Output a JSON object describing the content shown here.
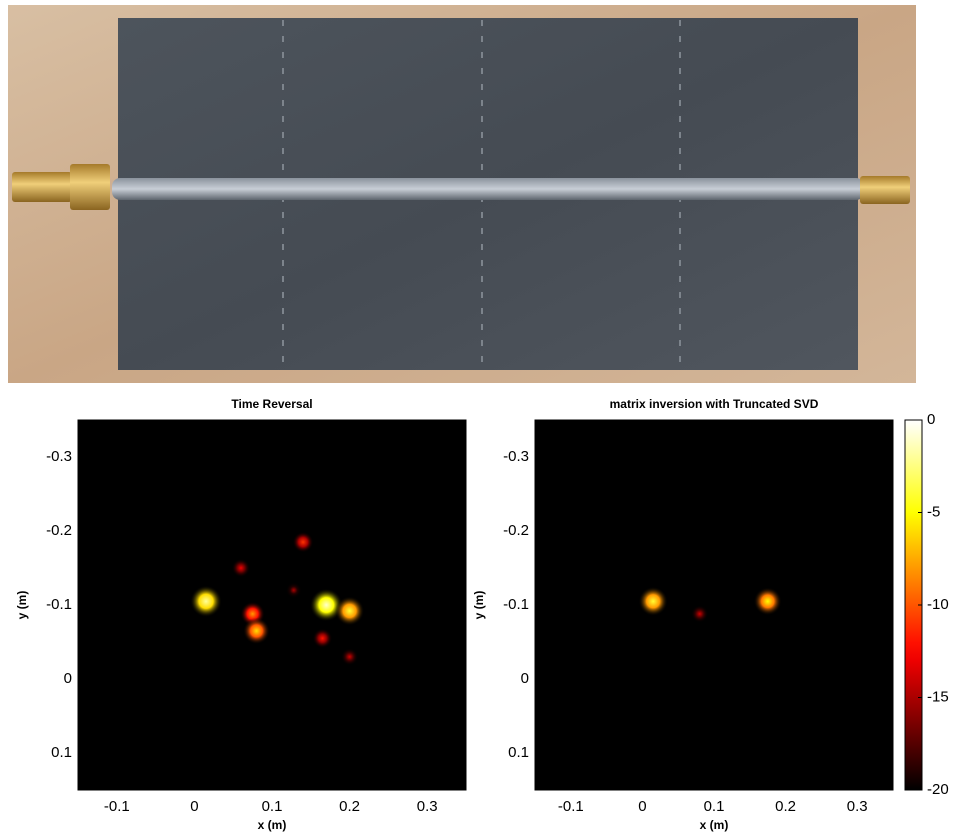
{
  "chart_data": [
    {
      "type": "heatmap",
      "title": "Time Reversal",
      "x_label": "x (m)",
      "y_label": "y (m)",
      "xlim": [
        -0.15,
        0.35
      ],
      "xticks": [
        -0.1,
        0,
        0.1,
        0.2,
        0.3
      ],
      "ylim": [
        -0.35,
        0.15
      ],
      "yticks": [
        -0.3,
        -0.2,
        -0.1,
        0,
        0.1
      ],
      "y_reversed": true,
      "spots": {
        "x": [
          0.015,
          0.075,
          0.08,
          0.06,
          0.14,
          0.17,
          0.2,
          0.2,
          0.165,
          0.128
        ],
        "y": [
          -0.105,
          -0.088,
          -0.065,
          -0.15,
          -0.185,
          -0.1,
          -0.092,
          -0.03,
          -0.055,
          -0.12
        ],
        "level": [
          -2,
          -8,
          -6,
          -13,
          -11,
          -1,
          -4,
          -14,
          -12,
          -15
        ]
      }
    },
    {
      "type": "heatmap",
      "title": "matrix inversion with Truncated SVD",
      "x_label": "x (m)",
      "y_label": "y (m)",
      "xlim": [
        -0.15,
        0.35
      ],
      "xticks": [
        -0.1,
        0,
        0.1,
        0.2,
        0.3
      ],
      "ylim": [
        -0.35,
        0.15
      ],
      "yticks": [
        -0.3,
        -0.2,
        -0.1,
        0,
        0.1
      ],
      "y_reversed": true,
      "spots": {
        "x": [
          0.015,
          0.175,
          0.08
        ],
        "y": [
          -0.105,
          -0.105,
          -0.088
        ],
        "level": [
          -4,
          -5,
          -14
        ]
      }
    }
  ],
  "colorbar": {
    "colormap": "hot",
    "clim": [
      -20,
      0
    ],
    "ticks": [
      0,
      -5,
      -10,
      -15,
      -20
    ]
  }
}
